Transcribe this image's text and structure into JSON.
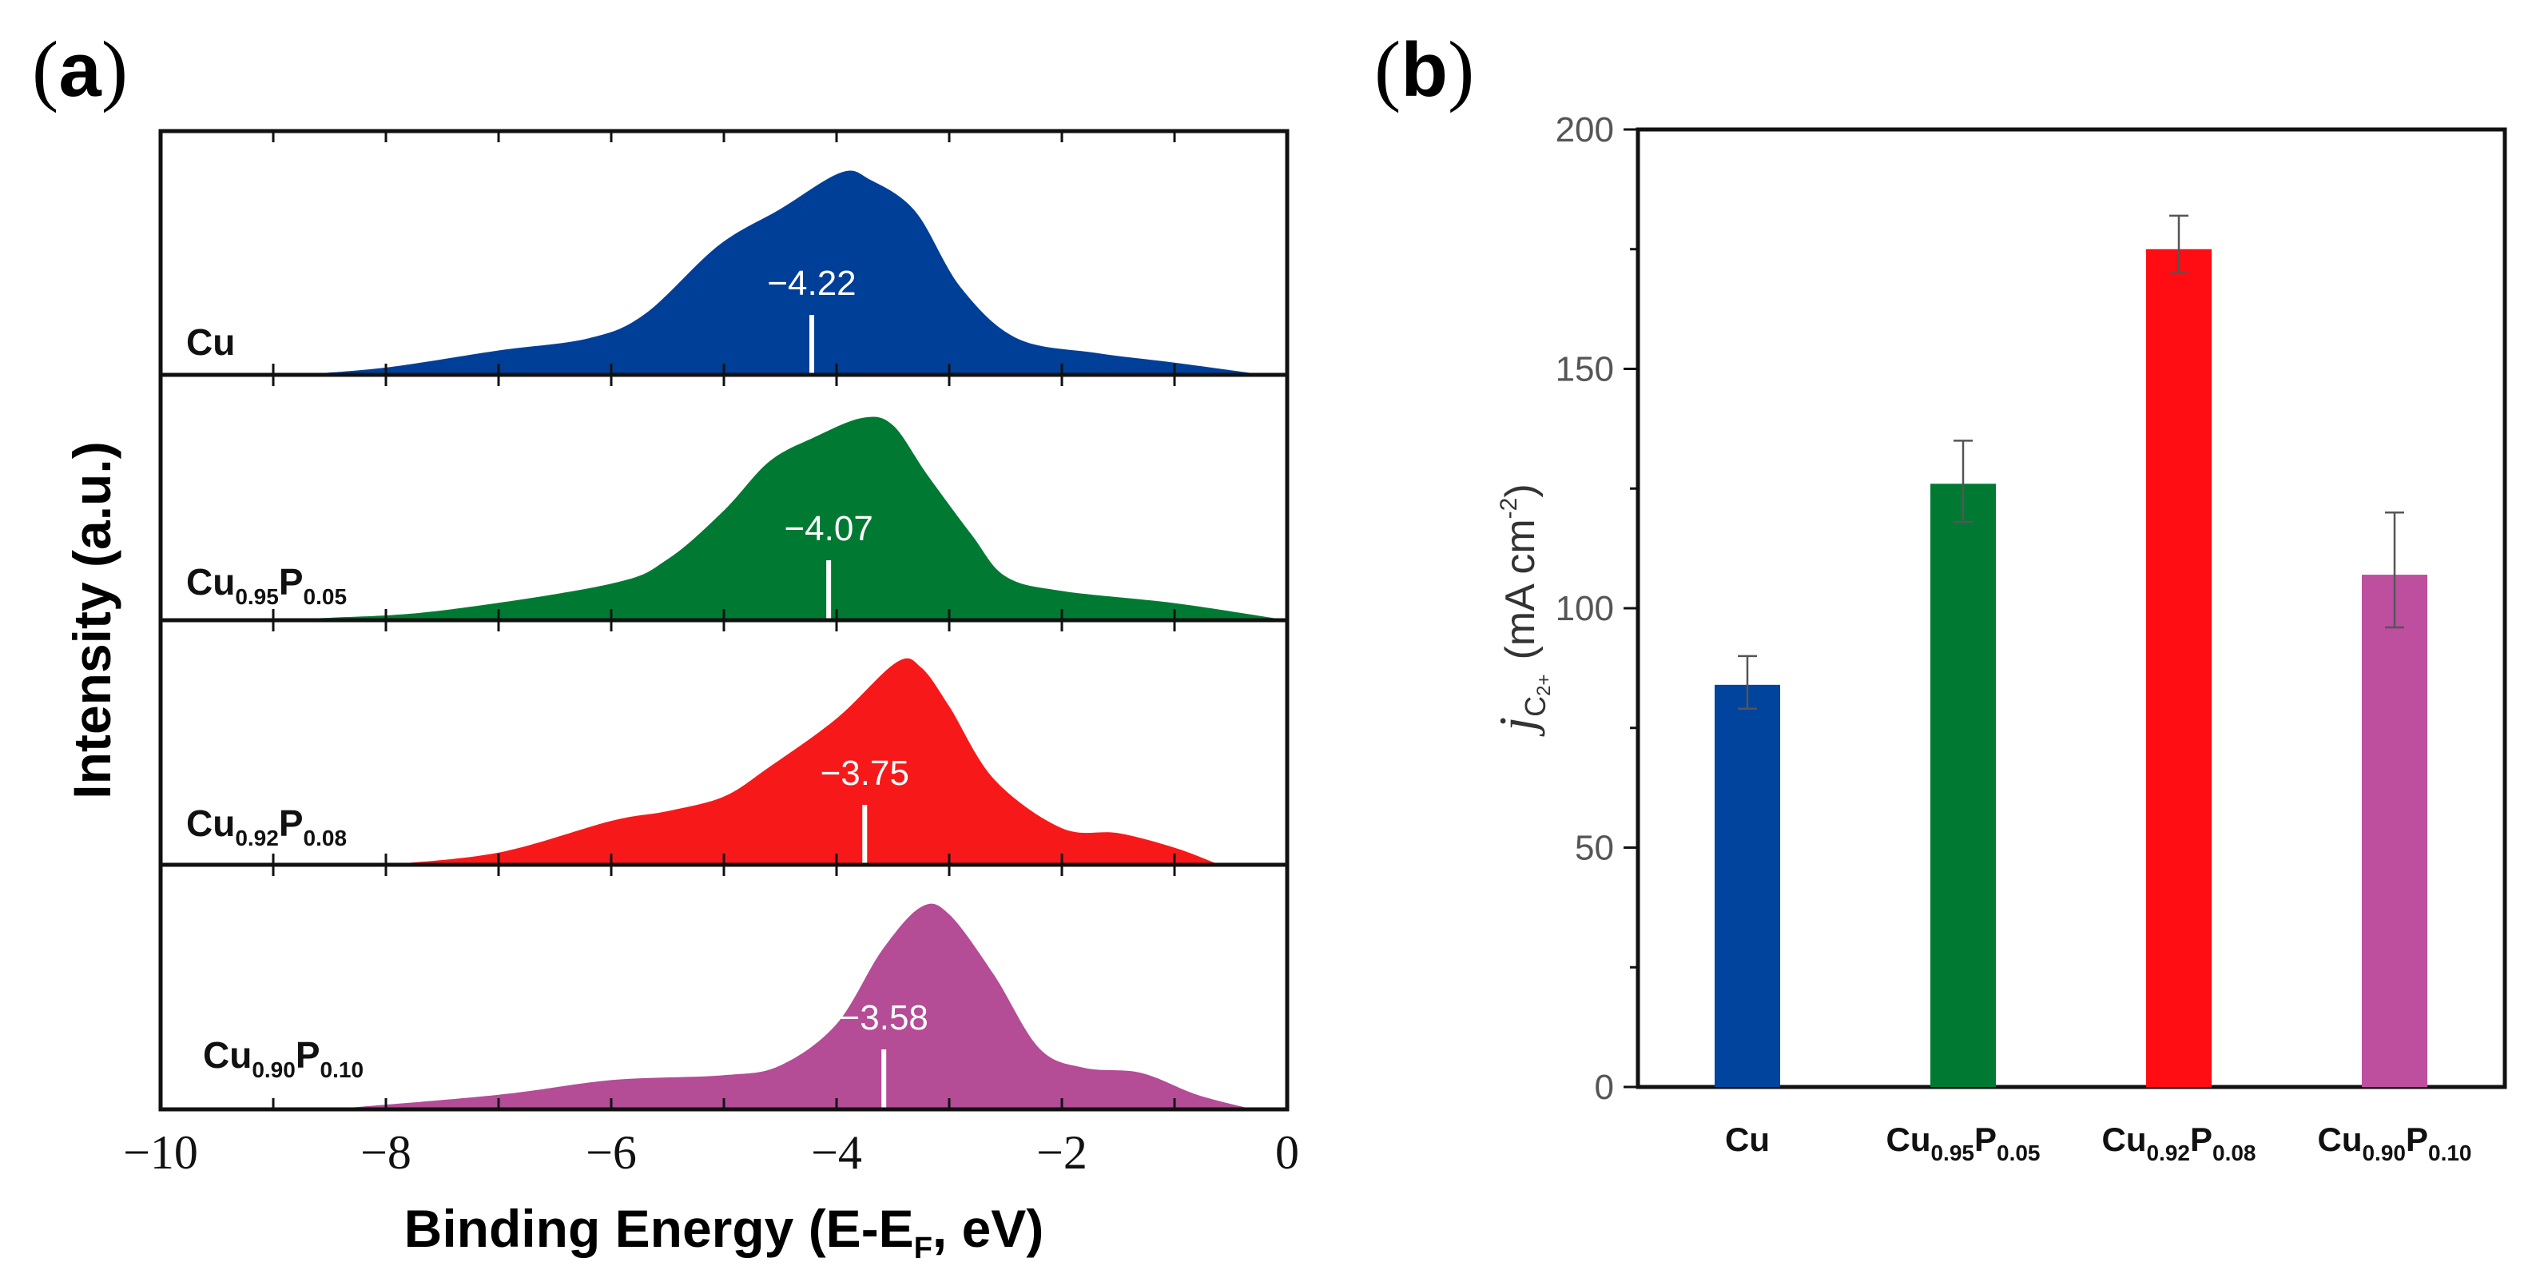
{
  "chart_data": [
    {
      "type": "area",
      "panel_label": "a",
      "xlabel": "Binding Energy (E-E",
      "xlabel_sub": "F",
      "xlabel_tail": ", eV)",
      "ylabel": "Intensity (a.u.)",
      "xlim": [
        -10,
        0
      ],
      "xticks": [
        -10,
        -8,
        -6,
        -4,
        -2,
        0
      ],
      "xtick_labels": [
        "−10",
        "−8",
        "−6",
        "−4",
        "−2",
        "0"
      ],
      "series": [
        {
          "name": "Cu",
          "label_parts": [
            "Cu",
            "",
            "",
            ""
          ],
          "color": "#003f98",
          "d_band_center": -4.22,
          "marker_label": "−4.22",
          "points": [
            [
              -8.8,
              0
            ],
            [
              -8,
              0.03
            ],
            [
              -7,
              0.1
            ],
            [
              -6.2,
              0.15
            ],
            [
              -5.7,
              0.25
            ],
            [
              -5.05,
              0.53
            ],
            [
              -4.5,
              0.68
            ],
            [
              -3.96,
              0.83
            ],
            [
              -3.7,
              0.8
            ],
            [
              -3.3,
              0.67
            ],
            [
              -2.9,
              0.36
            ],
            [
              -2.4,
              0.15
            ],
            [
              -1.7,
              0.09
            ],
            [
              -1,
              0.05
            ],
            [
              -0.2,
              0
            ]
          ]
        },
        {
          "name": "Cu0.95P0.05",
          "label_parts": [
            "Cu",
            "0.95",
            "P",
            "0.05"
          ],
          "color": "#007a33",
          "d_band_center": -4.07,
          "marker_label": "−4.07",
          "points": [
            [
              -9.5,
              0
            ],
            [
              -8.5,
              0.01
            ],
            [
              -7.5,
              0.04
            ],
            [
              -6,
              0.15
            ],
            [
              -5.5,
              0.25
            ],
            [
              -5,
              0.45
            ],
            [
              -4.6,
              0.65
            ],
            [
              -4.2,
              0.75
            ],
            [
              -3.77,
              0.83
            ],
            [
              -3.5,
              0.8
            ],
            [
              -3.2,
              0.6
            ],
            [
              -2.8,
              0.35
            ],
            [
              -2.5,
              0.18
            ],
            [
              -2,
              0.12
            ],
            [
              -1,
              0.07
            ],
            [
              0,
              0
            ]
          ]
        },
        {
          "name": "Cu0.92P0.08",
          "label_parts": [
            "Cu",
            "0.92",
            "P",
            "0.08"
          ],
          "color": "#f71919",
          "d_band_center": -3.75,
          "marker_label": "−3.75",
          "points": [
            [
              -8,
              0
            ],
            [
              -7,
              0.05
            ],
            [
              -6,
              0.18
            ],
            [
              -5.5,
              0.22
            ],
            [
              -5,
              0.28
            ],
            [
              -4.6,
              0.4
            ],
            [
              -4,
              0.6
            ],
            [
              -3.47,
              0.83
            ],
            [
              -3.25,
              0.81
            ],
            [
              -3,
              0.65
            ],
            [
              -2.6,
              0.35
            ],
            [
              -2,
              0.15
            ],
            [
              -1.5,
              0.13
            ],
            [
              -1,
              0.07
            ],
            [
              -0.6,
              0
            ]
          ]
        },
        {
          "name": "Cu0.90P0.10",
          "label_parts": [
            "Cu",
            "0.90",
            "P",
            "0.10"
          ],
          "color": "#b44c96",
          "d_band_center": -3.58,
          "marker_label": "−3.58",
          "points": [
            [
              -8.5,
              0
            ],
            [
              -7,
              0.06
            ],
            [
              -6,
              0.12
            ],
            [
              -5,
              0.14
            ],
            [
              -4.5,
              0.18
            ],
            [
              -4,
              0.35
            ],
            [
              -3.6,
              0.65
            ],
            [
              -3.25,
              0.83
            ],
            [
              -3,
              0.8
            ],
            [
              -2.6,
              0.55
            ],
            [
              -2.2,
              0.25
            ],
            [
              -1.8,
              0.17
            ],
            [
              -1.3,
              0.15
            ],
            [
              -0.8,
              0.06
            ],
            [
              -0.3,
              0
            ]
          ]
        }
      ]
    },
    {
      "type": "bar",
      "panel_label": "b",
      "ylabel_main": "j",
      "ylabel_sub": "C",
      "ylabel_subsub": "2+",
      "ylabel_units": "(mA cm",
      "ylabel_exp": "-2",
      "ylabel_close": ")",
      "ylim": [
        0,
        200
      ],
      "yticks": [
        0,
        50,
        100,
        150,
        200
      ],
      "ytick_labels": [
        "0",
        "50",
        "100",
        "150",
        "200"
      ],
      "categories": [
        "Cu",
        "Cu0.95P0.05",
        "Cu0.92P0.08",
        "Cu0.90P0.10"
      ],
      "category_parts": [
        [
          "Cu",
          "",
          "",
          ""
        ],
        [
          "Cu",
          "0.95",
          "P",
          "0.05"
        ],
        [
          "Cu",
          "0.92",
          "P",
          "0.08"
        ],
        [
          "Cu",
          "0.90",
          "P",
          "0.10"
        ]
      ],
      "values": [
        84,
        126,
        175,
        107
      ],
      "error_low": [
        79,
        118,
        170,
        96
      ],
      "error_high": [
        90,
        135,
        182,
        120
      ],
      "colors": [
        "#00449e",
        "#007a33",
        "#ff0d12",
        "#bd4f9e"
      ]
    }
  ]
}
